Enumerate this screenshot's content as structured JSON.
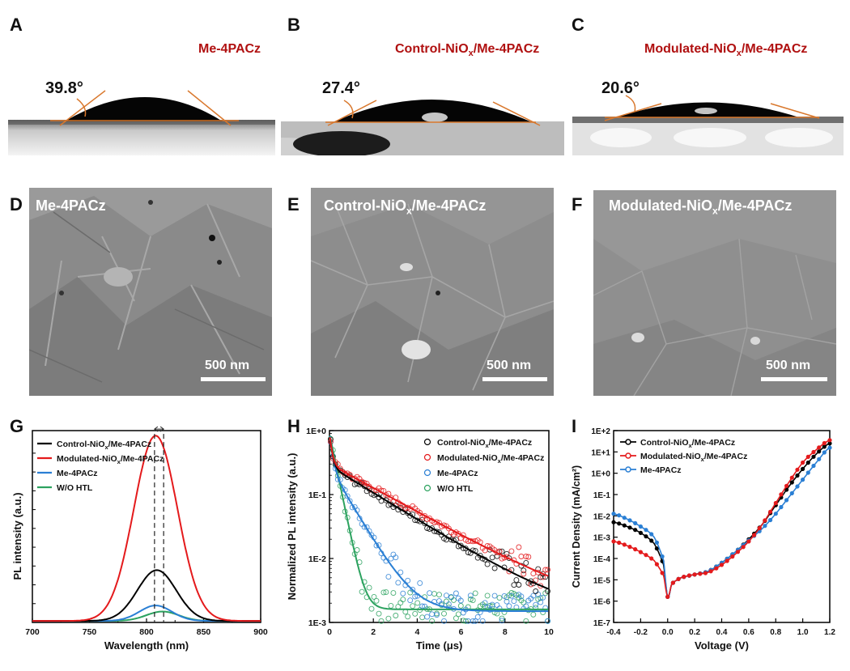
{
  "panels": {
    "A": {
      "label": "A",
      "title_main": "Me-4PACz",
      "angle": "39.8°"
    },
    "B": {
      "label": "B",
      "title_pre": "Control-NiO",
      "title_sub": "x",
      "title_post": "/Me-4PACz",
      "angle": "27.4°"
    },
    "C": {
      "label": "C",
      "title_pre": "Modulated-NiO",
      "title_sub": "x",
      "title_post": "/Me-4PACz",
      "angle": "20.6°"
    },
    "D": {
      "label": "D",
      "title_main": "Me-4PACz",
      "scale": "500 nm"
    },
    "E": {
      "label": "E",
      "title_pre": "Control-NiO",
      "title_sub": "x",
      "title_post": "/Me-4PACz",
      "scale": "500 nm"
    },
    "F": {
      "label": "F",
      "title_pre": "Modulated-NiO",
      "title_sub": "x",
      "title_post": "/Me-4PACz",
      "scale": "500 nm"
    },
    "G": {
      "label": "G"
    },
    "H": {
      "label": "H"
    },
    "I": {
      "label": "I"
    }
  },
  "colors": {
    "black": "#000000",
    "red": "#e41a1c",
    "blue": "#2a7fd4",
    "green": "#2ca25f",
    "title_red": "#b01010",
    "tangent": "#d9782d"
  },
  "chart_data": [
    {
      "id": "G",
      "type": "line",
      "title": "",
      "xlabel": "Wavelength (nm)",
      "ylabel": "PL intensity (a.u.)",
      "xlim": [
        700,
        900
      ],
      "ylim": [
        0,
        1.02
      ],
      "xticks": [
        700,
        750,
        800,
        850,
        900
      ],
      "legend": [
        {
          "pre": "Control-NiO",
          "sub": "x",
          "post": "/Me-4PACz",
          "color": "#000000"
        },
        {
          "pre": "Modulated-NiO",
          "sub": "x",
          "post": "/Me-4PACz",
          "color": "#e41a1c"
        },
        {
          "pre": "Me-4PACz",
          "sub": "",
          "post": "",
          "color": "#2a7fd4"
        },
        {
          "pre": "W/O HTL",
          "sub": "",
          "post": "",
          "color": "#2ca25f"
        }
      ],
      "series": [
        {
          "name": "Control-NiOx/Me-4PACz",
          "center": 809,
          "width": 24,
          "amplitude": 0.27
        },
        {
          "name": "Modulated-NiOx/Me-4PACz",
          "center": 808,
          "width": 27,
          "amplitude": 0.985
        },
        {
          "name": "Me-4PACz",
          "center": 808,
          "width": 20,
          "amplitude": 0.082
        },
        {
          "name": "W/O HTL",
          "center": 814,
          "width": 20,
          "amplitude": 0.05
        }
      ],
      "dashed_lines": [
        807,
        815
      ]
    },
    {
      "id": "H",
      "type": "scatter",
      "title": "",
      "xlabel": "Time (μs)",
      "ylabel": "Normalized PL intensity (a.u.)",
      "xlim": [
        0,
        10
      ],
      "ylog": [
        -3,
        0
      ],
      "xticks": [
        0,
        2,
        4,
        6,
        8,
        10
      ],
      "yticks": [
        "1E-3",
        "1E-2",
        "1E-1",
        "1E+0"
      ],
      "legend": [
        {
          "pre": "Control-NiO",
          "sub": "x",
          "post": "/Me-4PACz",
          "color": "#000000"
        },
        {
          "pre": "Modulated-NiO",
          "sub": "x",
          "post": "/Me-4PACz",
          "color": "#e41a1c"
        },
        {
          "pre": "Me-4PACz",
          "sub": "",
          "post": "",
          "color": "#2a7fd4"
        },
        {
          "pre": "W/O HTL",
          "sub": "",
          "post": "",
          "color": "#2ca25f"
        }
      ],
      "series": [
        {
          "name": "Control-NiOx/Me-4PACz",
          "a1": 0.62,
          "t1": 0.1,
          "a2": 0.28,
          "t2": 2.05,
          "floor": 0.0012
        },
        {
          "name": "Modulated-NiOx/Me-4PACz",
          "a1": 0.6,
          "t1": 0.1,
          "a2": 0.3,
          "t2": 2.3,
          "floor": 0.0014
        },
        {
          "name": "Me-4PACz",
          "a1": 0.65,
          "t1": 0.12,
          "a2": 0.27,
          "t2": 0.75,
          "floor": 0.0015
        },
        {
          "name": "W/O HTL",
          "a1": 0.9,
          "t1": 0.26,
          "a2": 0.0,
          "t2": 1.0,
          "floor": 0.0016
        }
      ]
    },
    {
      "id": "I",
      "type": "line",
      "title": "",
      "xlabel": "Voltage (V)",
      "ylabel": "Current  Density (mA/cm²)",
      "xlim": [
        -0.4,
        1.2
      ],
      "ylog": [
        -7,
        2
      ],
      "xticks": [
        -0.4,
        -0.2,
        0.0,
        0.2,
        0.4,
        0.6,
        0.8,
        1.0,
        1.2
      ],
      "yticks": [
        "1E-7",
        "1E-6",
        "1E-5",
        "1E-4",
        "1E-3",
        "1E-2",
        "1E-1",
        "1E+0",
        "1E+1",
        "1E+2"
      ],
      "legend": [
        {
          "pre": "Control-NiO",
          "sub": "x",
          "post": "/Me-4PACz",
          "color": "#000000"
        },
        {
          "pre": "Modulated-NiO",
          "sub": "x",
          "post": "/Me-4PACz",
          "color": "#e41a1c"
        },
        {
          "pre": "Me-4PACz",
          "sub": "",
          "post": "",
          "color": "#2a7fd4"
        }
      ],
      "series": [
        {
          "name": "Control-NiOx/Me-4PACz",
          "points": [
            [
              -0.4,
              -2.3
            ],
            [
              -0.3,
              -2.5
            ],
            [
              -0.2,
              -2.8
            ],
            [
              -0.1,
              -3.3
            ],
            [
              -0.03,
              -4.3
            ],
            [
              0.0,
              -5.8
            ],
            [
              0.03,
              -5.2
            ],
            [
              0.1,
              -4.9
            ],
            [
              0.2,
              -4.75
            ],
            [
              0.3,
              -4.6
            ],
            [
              0.4,
              -4.2
            ],
            [
              0.5,
              -3.7
            ],
            [
              0.6,
              -3.1
            ],
            [
              0.7,
              -2.4
            ],
            [
              0.8,
              -1.5
            ],
            [
              0.9,
              -0.6
            ],
            [
              1.0,
              0.2
            ],
            [
              1.1,
              0.9
            ],
            [
              1.2,
              1.4
            ]
          ]
        },
        {
          "name": "Modulated-NiOx/Me-4PACz",
          "points": [
            [
              -0.4,
              -3.2
            ],
            [
              -0.3,
              -3.4
            ],
            [
              -0.2,
              -3.7
            ],
            [
              -0.1,
              -4.1
            ],
            [
              -0.03,
              -4.8
            ],
            [
              0.0,
              -5.8
            ],
            [
              0.03,
              -5.2
            ],
            [
              0.1,
              -4.9
            ],
            [
              0.2,
              -4.75
            ],
            [
              0.3,
              -4.65
            ],
            [
              0.4,
              -4.3
            ],
            [
              0.5,
              -3.8
            ],
            [
              0.6,
              -3.2
            ],
            [
              0.7,
              -2.4
            ],
            [
              0.8,
              -1.4
            ],
            [
              0.9,
              -0.4
            ],
            [
              1.0,
              0.5
            ],
            [
              1.1,
              1.1
            ],
            [
              1.2,
              1.55
            ]
          ]
        },
        {
          "name": "Me-4PACz",
          "points": [
            [
              -0.4,
              -1.9
            ],
            [
              -0.3,
              -2.15
            ],
            [
              -0.2,
              -2.5
            ],
            [
              -0.1,
              -3.0
            ],
            [
              -0.03,
              -4.1
            ],
            [
              0.0,
              -5.8
            ],
            [
              0.03,
              -5.2
            ],
            [
              0.1,
              -4.9
            ],
            [
              0.2,
              -4.75
            ],
            [
              0.3,
              -4.6
            ],
            [
              0.4,
              -4.2
            ],
            [
              0.5,
              -3.7
            ],
            [
              0.6,
              -3.15
            ],
            [
              0.7,
              -2.6
            ],
            [
              0.8,
              -1.9
            ],
            [
              0.9,
              -1.1
            ],
            [
              1.0,
              -0.3
            ],
            [
              1.1,
              0.5
            ],
            [
              1.2,
              1.2
            ]
          ]
        }
      ]
    }
  ]
}
